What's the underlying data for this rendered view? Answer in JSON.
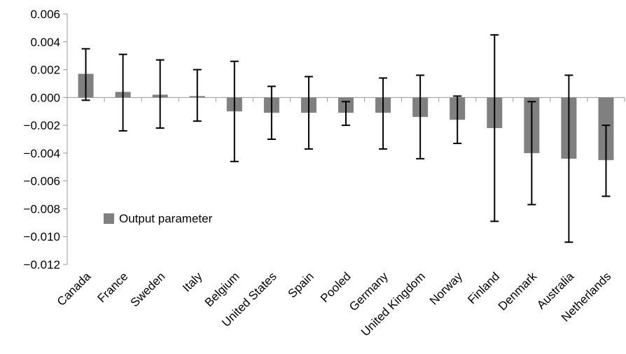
{
  "chart_data": {
    "type": "bar",
    "categories": [
      "Canada",
      "France",
      "Sweden",
      "Italy",
      "Belgium",
      "United States",
      "Spain",
      "Pooled",
      "Germany",
      "United Kingdom",
      "Norway",
      "Finland",
      "Denmark",
      "Australia",
      "Netherlands"
    ],
    "series": [
      {
        "name": "Output parameter",
        "color": "#808080",
        "values": [
          0.0017,
          0.0004,
          0.0002,
          0.0001,
          -0.001,
          -0.0011,
          -0.0011,
          -0.0011,
          -0.0011,
          -0.0014,
          -0.0016,
          -0.0022,
          -0.004,
          -0.0044,
          -0.0045
        ],
        "lower": [
          -0.0002,
          -0.0024,
          -0.0022,
          -0.0017,
          -0.0046,
          -0.003,
          -0.0037,
          -0.002,
          -0.0037,
          -0.0044,
          -0.0033,
          -0.0089,
          -0.0077,
          -0.0104,
          -0.0071
        ],
        "upper": [
          0.0035,
          0.0031,
          0.0027,
          0.002,
          0.0026,
          0.0008,
          0.0015,
          -0.0003,
          0.0014,
          0.0016,
          0.0001,
          0.0045,
          -0.0003,
          0.0016,
          -0.002
        ]
      }
    ],
    "ylim": [
      -0.012,
      0.006
    ],
    "yticks": [
      0.006,
      0.004,
      0.002,
      {
        "value": 0,
        "label": "0.000"
      },
      {
        "value": -0.002,
        "label": "−0.002"
      },
      {
        "value": -0.004,
        "label": "−0.004"
      },
      {
        "value": -0.006,
        "label": "−0.006"
      },
      {
        "value": -0.008,
        "label": "−0.008"
      },
      {
        "value": -0.01,
        "label": "−0.010"
      },
      {
        "value": -0.012,
        "label": "−0.012"
      }
    ],
    "legend": "left"
  }
}
